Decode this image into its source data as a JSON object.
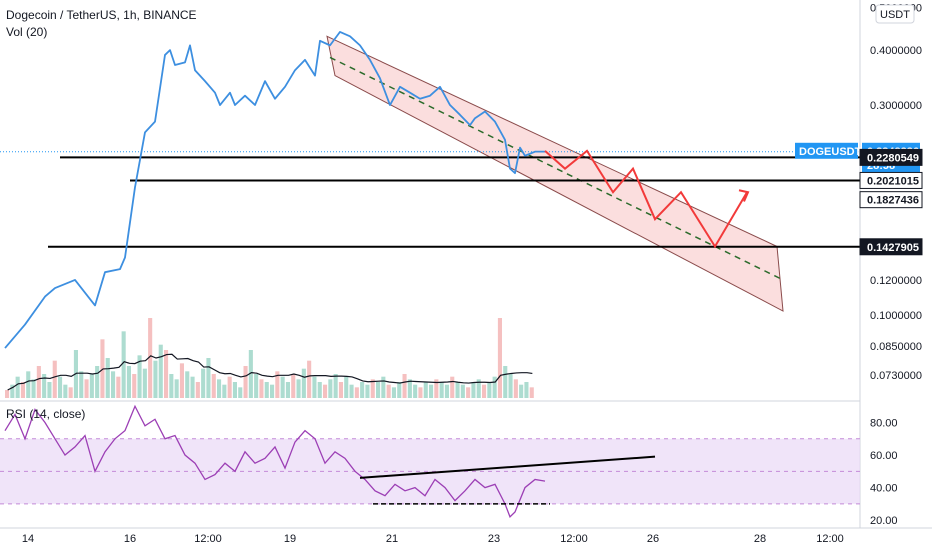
{
  "header": {
    "title": "Dogecoin / TetherUS, 1h, BINANCE",
    "vol_label": "Vol (20)",
    "rsi_label": "RSI (14, close)",
    "currency_button": "USDT"
  },
  "colors": {
    "price_line": "#3d8fe0",
    "rsi_line": "#9c3fb5",
    "rsi_band": "#e9d9f7",
    "channel_fill": "#f9d3d3",
    "channel_border": "#8a4b4b",
    "projection": "#f23a3a",
    "midline": "#2b6b2b",
    "symbol_tag": "#2196f3",
    "level_tag": "#131722",
    "volume_up": "#9fd6c8",
    "volume_down": "#f3b5b5",
    "volume_ma": "#131722"
  },
  "chart_data": [
    {
      "type": "line",
      "name": "price",
      "y_scale": "log",
      "ylim": [
        0.064,
        0.52
      ],
      "price_axis_ticks": [
        "0.5000000",
        "0.4000000",
        "0.3000000",
        "0.1200000",
        "0.1000000",
        "0.0850000",
        "0.0730000"
      ],
      "time_axis_ticks": [
        "14",
        "16",
        "12:00",
        "19",
        "21",
        "23",
        "12:00",
        "26",
        "28",
        "12:00"
      ],
      "symbol_tag": {
        "symbol": "DOGEUSDT",
        "price": "0.2348236",
        "countdown": "28:58",
        "value": 0.2348236
      },
      "horizontal_levels": [
        {
          "label": "0.2280549",
          "value": 0.2280549
        },
        {
          "label": "0.2021015",
          "value": 0.2021015
        },
        {
          "label": "0.1827436",
          "value": 0.1827436
        },
        {
          "label": "0.1427905",
          "value": 0.1427905
        }
      ],
      "series": [
        {
          "x": [
            0,
            20,
            40,
            50,
            70,
            90,
            100,
            115,
            120,
            130,
            140,
            150,
            160,
            165,
            170,
            180,
            185,
            190,
            200,
            210,
            215,
            225,
            230,
            240,
            250,
            260,
            270,
            280,
            290,
            300,
            310,
            315,
            325,
            335,
            345,
            355,
            365,
            375,
            385,
            395,
            405,
            415,
            425,
            435,
            445,
            455,
            465,
            470,
            480,
            490,
            500,
            505,
            510,
            515,
            520,
            530,
            540
          ],
          "values": [
            0.084,
            0.095,
            0.11,
            0.115,
            0.12,
            0.105,
            0.125,
            0.127,
            0.135,
            0.195,
            0.26,
            0.275,
            0.39,
            0.4,
            0.37,
            0.375,
            0.41,
            0.36,
            0.34,
            0.32,
            0.3,
            0.32,
            0.3,
            0.315,
            0.3,
            0.34,
            0.31,
            0.33,
            0.36,
            0.38,
            0.35,
            0.42,
            0.41,
            0.44,
            0.43,
            0.41,
            0.38,
            0.345,
            0.3,
            0.33,
            0.32,
            0.31,
            0.315,
            0.33,
            0.3,
            0.285,
            0.27,
            0.28,
            0.29,
            0.275,
            0.25,
            0.215,
            0.21,
            0.24,
            0.23,
            0.235,
            0.235
          ]
        }
      ]
    },
    {
      "type": "bar",
      "name": "volume",
      "values": [
        3,
        5,
        8,
        6,
        10,
        7,
        12,
        9,
        6,
        14,
        8,
        5,
        4,
        18,
        10,
        7,
        9,
        12,
        22,
        15,
        10,
        8,
        25,
        12,
        9,
        16,
        11,
        30,
        14,
        20,
        18,
        9,
        7,
        13,
        10,
        8,
        6,
        11,
        15,
        9,
        7,
        5,
        8,
        6,
        4,
        12,
        18,
        9,
        7,
        6,
        5,
        10,
        8,
        6,
        9,
        7,
        11,
        14,
        8,
        6,
        5,
        7,
        9,
        6,
        8,
        5,
        4,
        6,
        5,
        7,
        6,
        8,
        5,
        4,
        6,
        9,
        7,
        5,
        4,
        6,
        5,
        7,
        6,
        5,
        8,
        6,
        5,
        4,
        6,
        7,
        5,
        6,
        8,
        30,
        12,
        9,
        7,
        5,
        6,
        4
      ]
    },
    {
      "type": "line",
      "name": "rsi",
      "ylim": [
        17,
        92
      ],
      "axis_ticks": [
        "80.00",
        "60.00",
        "40.00",
        "20.00"
      ],
      "band": [
        30,
        70
      ],
      "series": [
        {
          "x": [
            0,
            10,
            20,
            30,
            40,
            50,
            60,
            70,
            80,
            90,
            100,
            110,
            120,
            130,
            140,
            150,
            160,
            170,
            180,
            190,
            200,
            210,
            220,
            230,
            240,
            250,
            260,
            270,
            280,
            290,
            300,
            310,
            320,
            330,
            340,
            350,
            360,
            370,
            380,
            390,
            400,
            410,
            420,
            430,
            440,
            450,
            460,
            470,
            480,
            490,
            500,
            505,
            510,
            520,
            530,
            540
          ],
          "values": [
            75,
            85,
            70,
            88,
            80,
            70,
            60,
            65,
            72,
            50,
            62,
            70,
            75,
            90,
            78,
            82,
            70,
            72,
            60,
            55,
            45,
            48,
            55,
            50,
            62,
            55,
            58,
            65,
            52,
            68,
            75,
            70,
            55,
            62,
            58,
            50,
            45,
            38,
            35,
            42,
            38,
            40,
            35,
            45,
            40,
            32,
            38,
            45,
            40,
            42,
            30,
            22,
            25,
            40,
            45,
            44
          ]
        }
      ]
    }
  ]
}
